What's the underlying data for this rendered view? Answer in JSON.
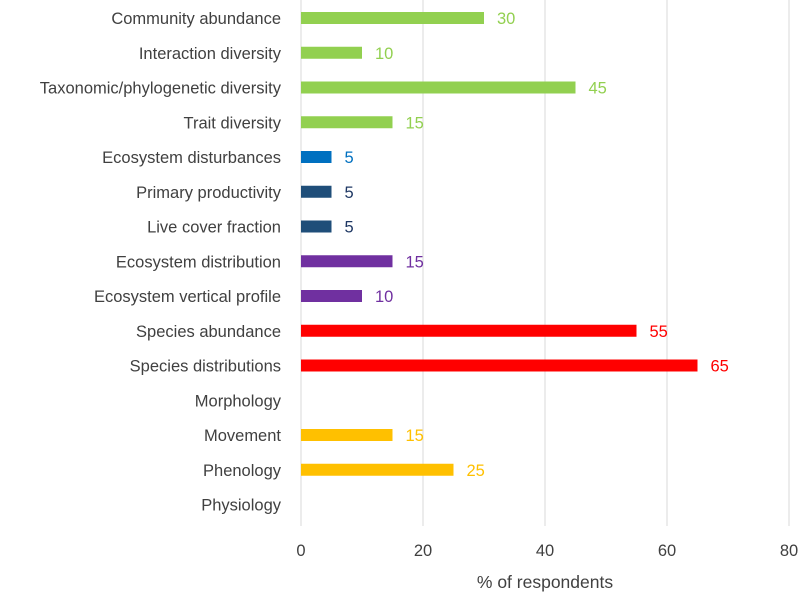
{
  "chart_data": {
    "type": "bar",
    "orientation": "horizontal",
    "title": "",
    "xlabel": "% of respondents",
    "ylabel": "",
    "xlim": [
      0,
      80
    ],
    "xticks": [
      0,
      20,
      40,
      60,
      80
    ],
    "grid": "vertical",
    "legend": "none",
    "categories": [
      "Community abundance",
      "Interaction diversity",
      "Taxonomic/phylogenetic diversity",
      "Trait diversity",
      "Ecosystem disturbances",
      "Primary productivity",
      "Live cover fraction",
      "Ecosystem distribution",
      "Ecosystem vertical profile",
      "Species abundance",
      "Species distributions",
      "Morphology",
      "Movement",
      "Phenology",
      "Physiology"
    ],
    "values": [
      30,
      10,
      45,
      15,
      5,
      5,
      5,
      15,
      10,
      55,
      65,
      null,
      15,
      25,
      null
    ],
    "colors": [
      "#92d050",
      "#92d050",
      "#92d050",
      "#92d050",
      "#0070c0",
      "#1f4e79",
      "#1f4e79",
      "#7030a0",
      "#7030a0",
      "#ff0000",
      "#ff0000",
      "#ffc000",
      "#ffc000",
      "#ffc000",
      "#ffc000"
    ],
    "label_colors": [
      "#92d050",
      "#92d050",
      "#92d050",
      "#92d050",
      "#0070c0",
      "#1f3864",
      "#1f3864",
      "#7030a0",
      "#7030a0",
      "#ff0000",
      "#ff0000",
      "#ffc000",
      "#ffc000",
      "#ffc000",
      "#ffc000"
    ]
  }
}
